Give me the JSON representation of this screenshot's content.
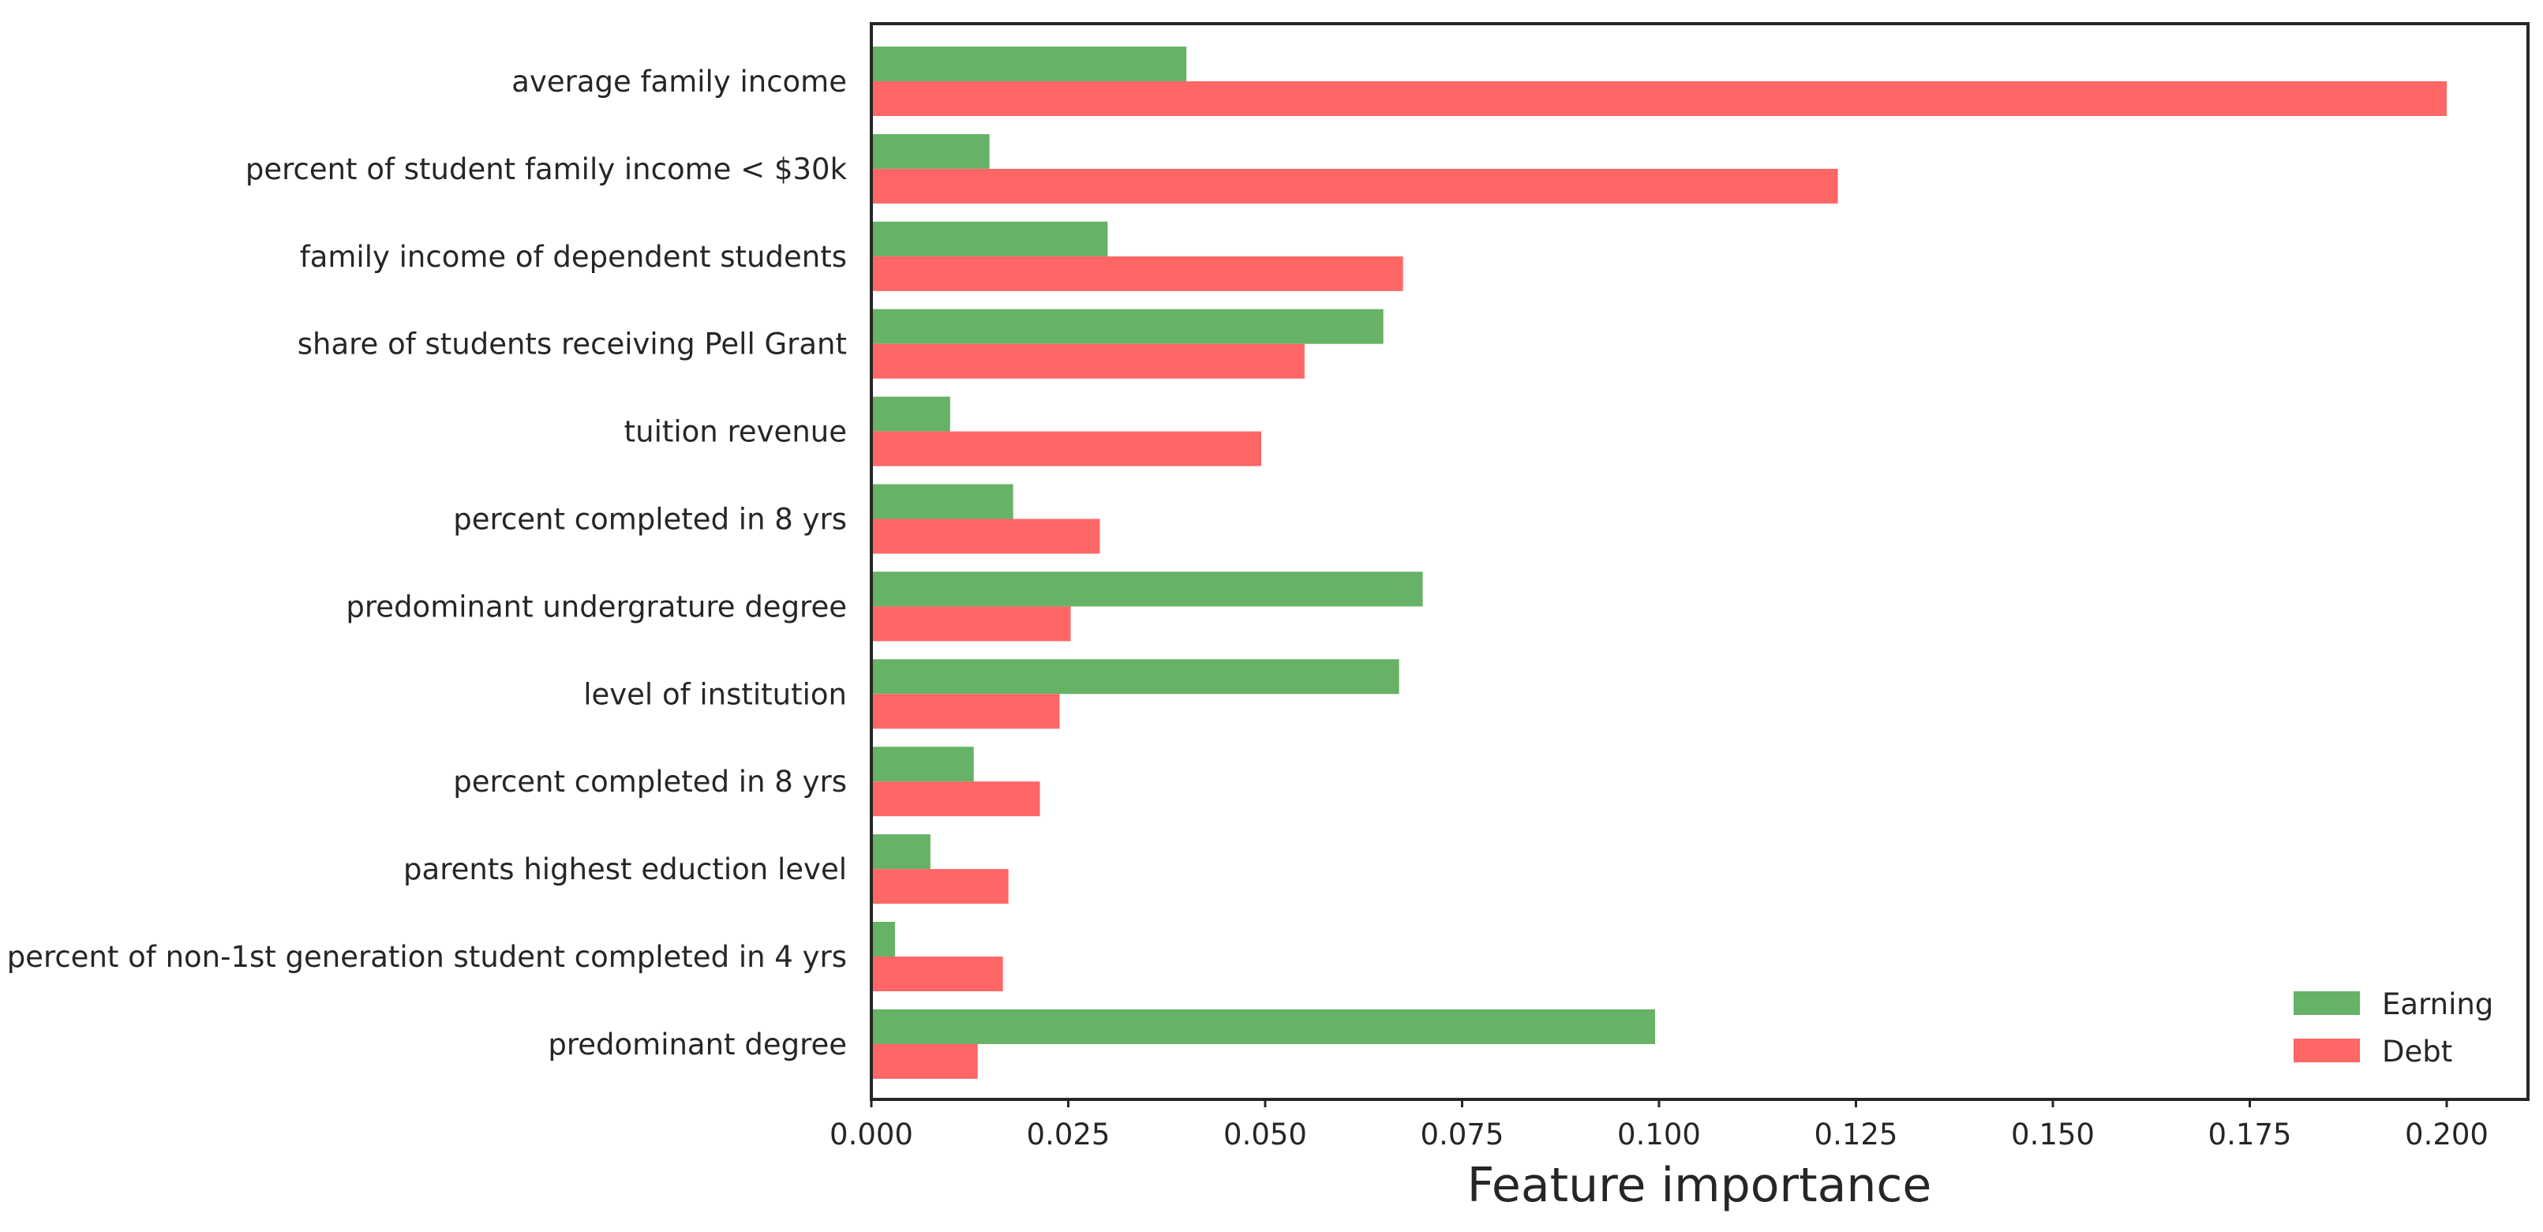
{
  "chart_data": {
    "type": "bar",
    "orientation": "horizontal",
    "title": "",
    "xlabel": "Feature importance",
    "ylabel": "",
    "xlim": [
      0,
      0.21
    ],
    "xticks": [
      0.0,
      0.025,
      0.05,
      0.075,
      0.1,
      0.125,
      0.15,
      0.175,
      0.2
    ],
    "xtick_labels": [
      "0.000",
      "0.025",
      "0.050",
      "0.075",
      "0.100",
      "0.125",
      "0.150",
      "0.175",
      "0.200"
    ],
    "grid": false,
    "legend_position": "bottom-right",
    "categories": [
      "average family income",
      "percent of student family income < $30k",
      "family income of dependent students",
      "share of students receiving Pell Grant",
      "tuition revenue",
      "percent completed in 8 yrs",
      "predominant undergrature degree",
      "level of institution",
      "percent completed in 8 yrs",
      "parents highest eduction level",
      "percent of non-1st generation student completed in 4 yrs",
      "predominant degree"
    ],
    "series": [
      {
        "name": "Earning",
        "color": "#66b266",
        "values": [
          0.04,
          0.015,
          0.03,
          0.065,
          0.01,
          0.018,
          0.07,
          0.067,
          0.013,
          0.0075,
          0.003,
          0.0995
        ]
      },
      {
        "name": "Debt",
        "color": "#ff6666",
        "values": [
          0.2,
          0.1227,
          0.0675,
          0.055,
          0.0495,
          0.029,
          0.0253,
          0.0239,
          0.0214,
          0.0174,
          0.0167,
          0.0135
        ]
      }
    ]
  }
}
